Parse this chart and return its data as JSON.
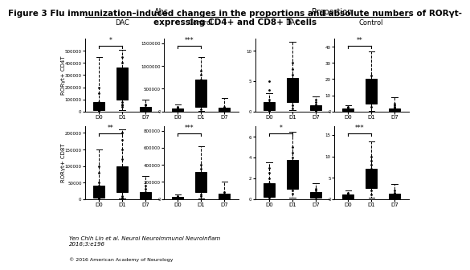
{
  "title": "Figure 3 Flu immunization–induced changes in the proportions and absolute numbers of RORγt-\nexpressing CD4+ and CD8+ T cells",
  "title_fontsize": 7.5,
  "col_headers": [
    "DAC",
    "Control",
    "DAC",
    "Control"
  ],
  "row_headers": [
    "RORγt+ CD4T",
    "RORγt+ CD8T"
  ],
  "section_headers": [
    "Abs",
    "Proportion"
  ],
  "x_labels": [
    "D0",
    "D1",
    "D7"
  ],
  "significance": {
    "row0_col0": "*",
    "row0_col1": "***",
    "row0_col2": null,
    "row0_col3": "**",
    "row1_col0": "**",
    "row1_col1": "***",
    "row1_col2": "*",
    "row1_col3": "***"
  },
  "ylims": [
    [
      0,
      600000,
      0,
      1600000,
      0,
      12,
      0,
      45
    ],
    [
      0,
      220000,
      0,
      850000,
      0,
      7,
      0,
      17
    ]
  ],
  "yticks": [
    [
      [
        0,
        100000,
        200000,
        300000,
        400000,
        500000
      ],
      [
        0,
        500000,
        1000000,
        1500000
      ],
      [
        0,
        5,
        10
      ],
      [
        0,
        10,
        20,
        30,
        40
      ]
    ],
    [
      [
        0,
        50000,
        100000,
        150000,
        200000
      ],
      [
        0,
        200000,
        400000,
        600000,
        800000
      ],
      [
        0,
        2,
        4,
        6
      ],
      [
        0,
        5,
        10,
        15
      ]
    ]
  ],
  "ytick_labels": [
    [
      [
        "0",
        "100000",
        "200000",
        "300000",
        "400000",
        "500000"
      ],
      [
        "0",
        "500000",
        "1000000",
        "1500000"
      ],
      [
        "0",
        "5",
        "10"
      ],
      [
        "0",
        "10",
        "20",
        "30",
        "40"
      ]
    ],
    [
      [
        "0",
        "50000",
        "100000",
        "150000",
        "200000"
      ],
      [
        "0",
        "200000",
        "400000",
        "600000",
        "800000"
      ],
      [
        "0",
        "2",
        "4",
        "6"
      ],
      [
        "0",
        "5",
        "10",
        "15"
      ]
    ]
  ],
  "box_data": {
    "row0_col0": {
      "D0": {
        "q1": 10000,
        "med": 50000,
        "q3": 80000,
        "whislo": 0,
        "whishi": 450000,
        "fliers": [
          25000,
          35000,
          55000,
          70000,
          80000,
          150000,
          200000,
          60000,
          40000,
          30000,
          20000,
          15000,
          10000,
          5000
        ]
      },
      "D1": {
        "q1": 100000,
        "med": 200000,
        "q3": 360000,
        "whislo": 10000,
        "whishi": 510000,
        "fliers": [
          120000,
          180000,
          250000,
          300000,
          350000,
          400000,
          450000,
          80000,
          60000,
          50000,
          40000
        ]
      },
      "D7": {
        "q1": 5000,
        "med": 20000,
        "q3": 40000,
        "whislo": 0,
        "whishi": 100000,
        "fliers": [
          10000,
          15000,
          20000,
          30000,
          50000,
          60000,
          5000,
          3000
        ]
      }
    },
    "row0_col1": {
      "D0": {
        "q1": 5000,
        "med": 30000,
        "q3": 60000,
        "whislo": 0,
        "whishi": 150000,
        "fliers": [
          10000,
          20000,
          30000,
          50000,
          80000,
          100000,
          5000,
          3000,
          2000
        ]
      },
      "D1": {
        "q1": 100000,
        "med": 280000,
        "q3": 700000,
        "whislo": 10000,
        "whishi": 1200000,
        "fliers": [
          150000,
          200000,
          300000,
          400000,
          500000,
          600000,
          700000,
          800000,
          900000,
          50000
        ]
      },
      "D7": {
        "q1": 5000,
        "med": 30000,
        "q3": 80000,
        "whislo": 0,
        "whishi": 300000,
        "fliers": [
          10000,
          20000,
          40000,
          60000,
          100000,
          5000,
          3000
        ]
      }
    },
    "row0_col2": {
      "D0": {
        "q1": 0.2,
        "med": 0.8,
        "q3": 1.5,
        "whislo": 0,
        "whishi": 3,
        "fliers": [
          0.5,
          1.0,
          1.5,
          2.0,
          3.5,
          5.0,
          0.3,
          0.2,
          0.1
        ]
      },
      "D1": {
        "q1": 1.5,
        "med": 3.5,
        "q3": 5.5,
        "whislo": 0.2,
        "whishi": 11.5,
        "fliers": [
          2.0,
          3.0,
          4.0,
          5.0,
          6.0,
          7.0,
          8.0,
          1.0,
          0.5
        ]
      },
      "D7": {
        "q1": 0.2,
        "med": 0.5,
        "q3": 1.0,
        "whislo": 0,
        "whishi": 2.5,
        "fliers": [
          0.5,
          0.8,
          1.2,
          1.5,
          2.0,
          0.3,
          0.1
        ]
      }
    },
    "row0_col3": {
      "D0": {
        "q1": 0.3,
        "med": 1.0,
        "q3": 2.0,
        "whislo": 0,
        "whishi": 4.0,
        "fliers": [
          0.5,
          1.0,
          1.5,
          2.5,
          3.0,
          0.3,
          0.2
        ]
      },
      "D1": {
        "q1": 5.0,
        "med": 12.0,
        "q3": 20.0,
        "whislo": 0.5,
        "whishi": 37.0,
        "fliers": [
          6.0,
          8.0,
          10.0,
          14.0,
          16.0,
          18.0,
          22.0,
          3.0
        ]
      },
      "D7": {
        "q1": 0.2,
        "med": 0.8,
        "q3": 2.0,
        "whislo": 0,
        "whishi": 9.0,
        "fliers": [
          0.5,
          1.0,
          1.5,
          2.5,
          3.0,
          4.0,
          5.0,
          0.3
        ]
      }
    },
    "row1_col0": {
      "D0": {
        "q1": 5000,
        "med": 20000,
        "q3": 40000,
        "whislo": 0,
        "whishi": 150000,
        "fliers": [
          10000,
          20000,
          30000,
          40000,
          50000,
          80000,
          100000,
          5000,
          3000,
          2000
        ]
      },
      "D1": {
        "q1": 20000,
        "med": 60000,
        "q3": 100000,
        "whislo": 2000,
        "whishi": 210000,
        "fliers": [
          30000,
          50000,
          70000,
          90000,
          120000,
          150000,
          180000,
          200000,
          10000,
          5000
        ]
      },
      "D7": {
        "q1": 2000,
        "med": 8000,
        "q3": 20000,
        "whislo": 0,
        "whishi": 70000,
        "fliers": [
          5000,
          10000,
          15000,
          20000,
          30000,
          40000,
          2000,
          1000
        ]
      }
    },
    "row1_col1": {
      "D0": {
        "q1": 3000,
        "med": 10000,
        "q3": 25000,
        "whislo": 0,
        "whishi": 50000,
        "fliers": [
          5000,
          10000,
          15000,
          20000,
          30000,
          3000,
          2000,
          1000
        ]
      },
      "D1": {
        "q1": 80000,
        "med": 200000,
        "q3": 320000,
        "whislo": 5000,
        "whishi": 620000,
        "fliers": [
          100000,
          150000,
          200000,
          250000,
          300000,
          350000,
          400000,
          50000,
          30000
        ]
      },
      "D7": {
        "q1": 3000,
        "med": 20000,
        "q3": 60000,
        "whislo": 0,
        "whishi": 200000,
        "fliers": [
          10000,
          20000,
          40000,
          60000,
          80000,
          3000,
          1000
        ]
      }
    },
    "row1_col2": {
      "D0": {
        "q1": 0.2,
        "med": 0.8,
        "q3": 1.5,
        "whislo": 0,
        "whishi": 3.5,
        "fliers": [
          0.5,
          1.0,
          1.5,
          2.0,
          2.5,
          3.0,
          0.3,
          0.2,
          0.1
        ]
      },
      "D1": {
        "q1": 1.0,
        "med": 2.5,
        "q3": 3.8,
        "whislo": 0.1,
        "whishi": 6.5,
        "fliers": [
          1.5,
          2.0,
          2.5,
          3.0,
          3.5,
          4.0,
          4.5,
          5.0,
          0.8,
          0.5
        ]
      },
      "D7": {
        "q1": 0.1,
        "med": 0.3,
        "q3": 0.7,
        "whislo": 0,
        "whishi": 1.5,
        "fliers": [
          0.3,
          0.5,
          0.8,
          1.0,
          0.2,
          0.1
        ]
      }
    },
    "row1_col3": {
      "D0": {
        "q1": 0.2,
        "med": 0.5,
        "q3": 1.0,
        "whislo": 0,
        "whishi": 2.0,
        "fliers": [
          0.5,
          0.8,
          1.2,
          1.5,
          0.3,
          0.2,
          0.1
        ]
      },
      "D1": {
        "q1": 2.5,
        "med": 4.5,
        "q3": 7.0,
        "whislo": 0.3,
        "whishi": 13.5,
        "fliers": [
          3.0,
          4.0,
          5.0,
          6.0,
          7.0,
          8.0,
          9.0,
          10.0,
          2.0,
          1.0
        ]
      },
      "D7": {
        "q1": 0.2,
        "med": 0.5,
        "q3": 1.2,
        "whislo": 0,
        "whishi": 3.5,
        "fliers": [
          0.5,
          0.8,
          1.0,
          1.5,
          2.0,
          0.3,
          0.1
        ]
      }
    }
  },
  "citation": "Yen Chih Lin et al. Neurol Neuroimmunol Neuroinflam\n2016;3:e196",
  "copyright": "© 2016 American Academy of Neurology",
  "background_color": "#ffffff",
  "box_facecolor": "white",
  "box_edgecolor": "black",
  "flier_color": "black",
  "flier_marker": ".",
  "flier_size": 2
}
